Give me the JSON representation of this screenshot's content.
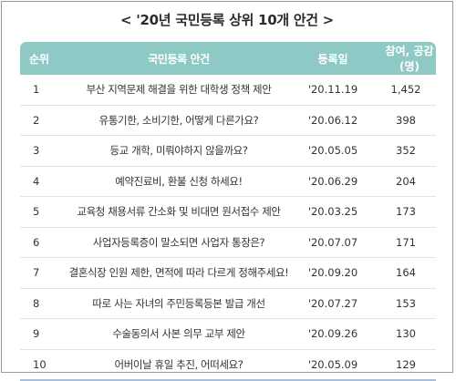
{
  "title": "< '20년 국민등록 상위 10개 안건 >",
  "headers": {
    "rank": "순위",
    "topic": "국민등록 안건",
    "date": "등록일",
    "count": "참여, 공감(명)"
  },
  "rows": [
    {
      "rank": "1",
      "topic": "부산 지역문제 해결을 위한 대학생 정책 제안",
      "date": "'20.11.19",
      "count": "1,452"
    },
    {
      "rank": "2",
      "topic": "유통기한, 소비기한, 어떻게 다른가요?",
      "date": "'20.06.12",
      "count": "398"
    },
    {
      "rank": "3",
      "topic": "등교 개학, 미뤄야하지 않을까요?",
      "date": "'20.05.05",
      "count": "352"
    },
    {
      "rank": "4",
      "topic": "예약진료비, 환불 신청 하세요!",
      "date": "'20.06.29",
      "count": "204"
    },
    {
      "rank": "5",
      "topic": "교육청 채용서류 간소화 및 비대면 원서접수 제안",
      "date": "'20.03.25",
      "count": "173"
    },
    {
      "rank": "6",
      "topic": "사업자등록증이 말소되면 사업자 통장은?",
      "date": "'20.07.07",
      "count": "171"
    },
    {
      "rank": "7",
      "topic": "결혼식장 인원 제한, 면적에 따라 다르게 정해주세요!",
      "date": "'20.09.20",
      "count": "164"
    },
    {
      "rank": "8",
      "topic": "따로 사는 자녀의 주민등록등본 발급 개선",
      "date": "'20.07.27",
      "count": "153"
    },
    {
      "rank": "9",
      "topic": "수술동의서 사본 의무 교부 제안",
      "date": "'20.09.26",
      "count": "130"
    },
    {
      "rank": "10",
      "topic": "어버이날 휴일 추진, 어떠세요?",
      "date": "'20.05.09",
      "count": "129"
    }
  ]
}
